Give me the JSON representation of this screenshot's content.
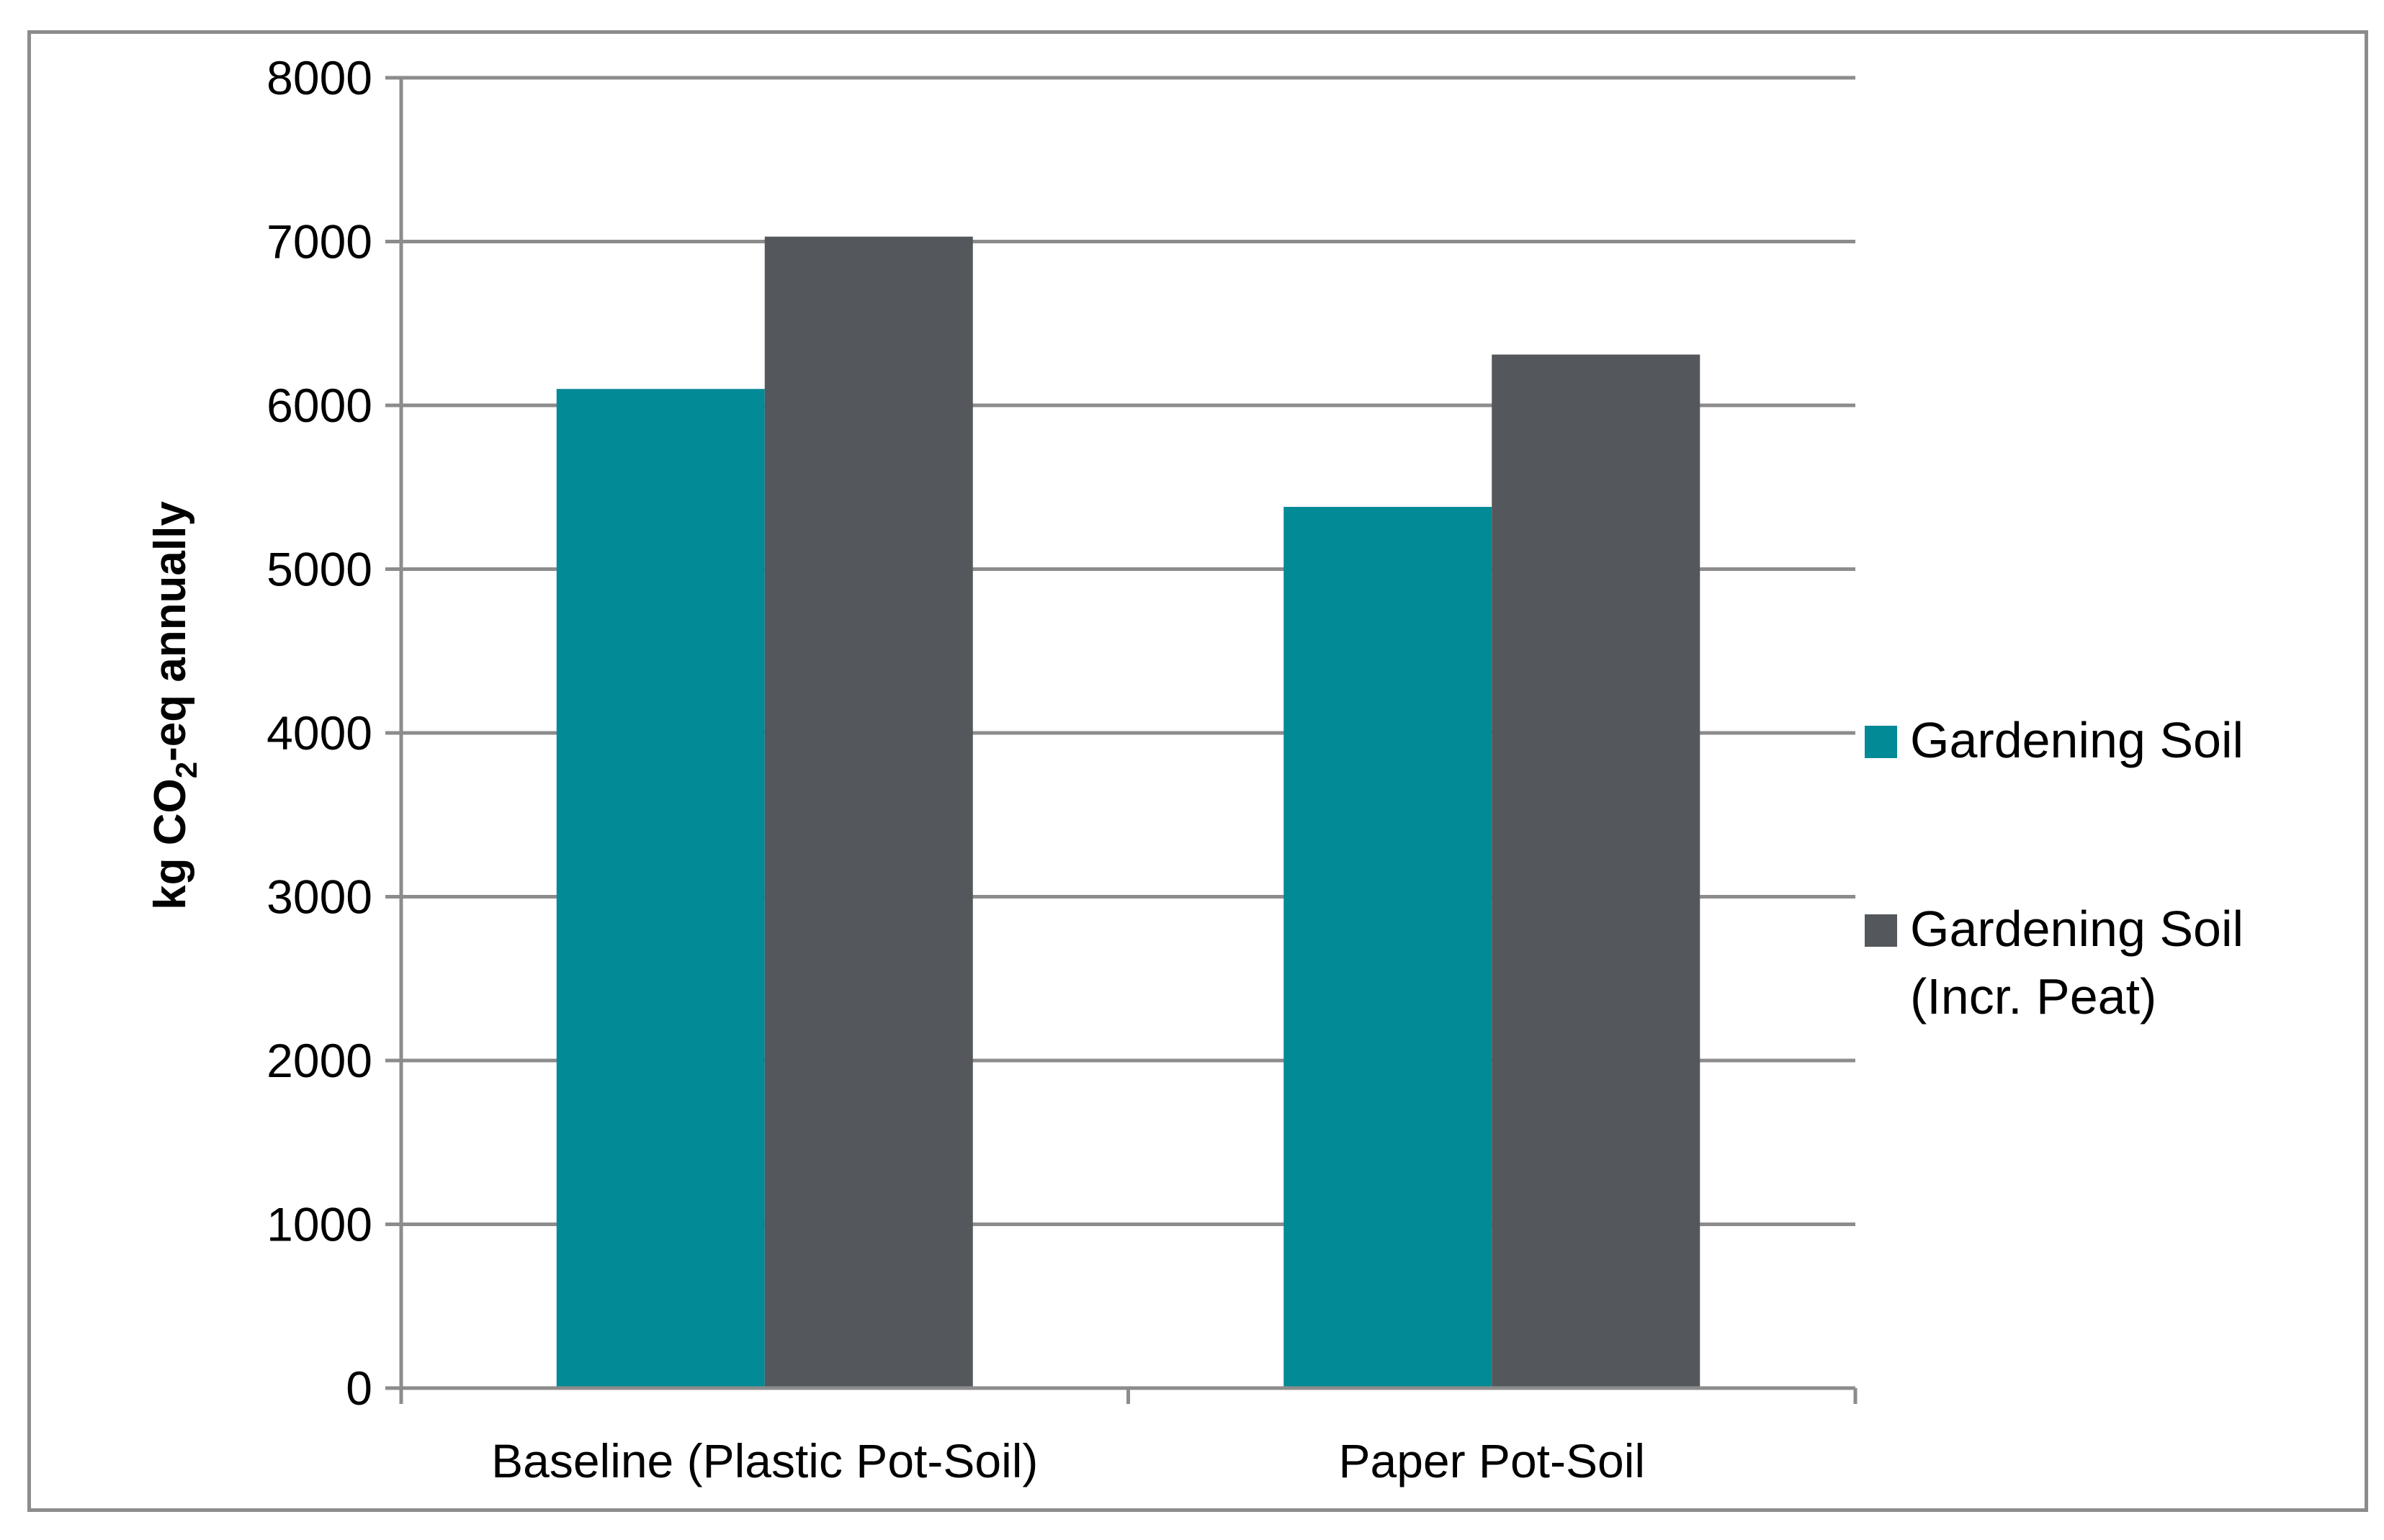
{
  "chart_data": {
    "type": "bar",
    "categories": [
      "Baseline (Plastic Pot-Soil)",
      "Paper Pot-Soil"
    ],
    "series": [
      {
        "name": "Gardening Soil",
        "color": "#028a96",
        "values": [
          6100,
          5380
        ]
      },
      {
        "name": "Gardening Soil (Incr. Peat)",
        "name_lines": [
          "Gardening Soil",
          "(Incr. Peat)"
        ],
        "color": "#54575b",
        "values": [
          7030,
          6310
        ]
      }
    ],
    "ylabel_parts": [
      "kg CO",
      "2",
      "-eq annually"
    ],
    "ylim": [
      0,
      8000
    ],
    "yticks": [
      0,
      1000,
      2000,
      3000,
      4000,
      5000,
      6000,
      7000,
      8000
    ],
    "grid": true,
    "legend_position": "right",
    "colors": {
      "gridline": "#8c8c8c",
      "axis": "#8c8c8c"
    }
  }
}
